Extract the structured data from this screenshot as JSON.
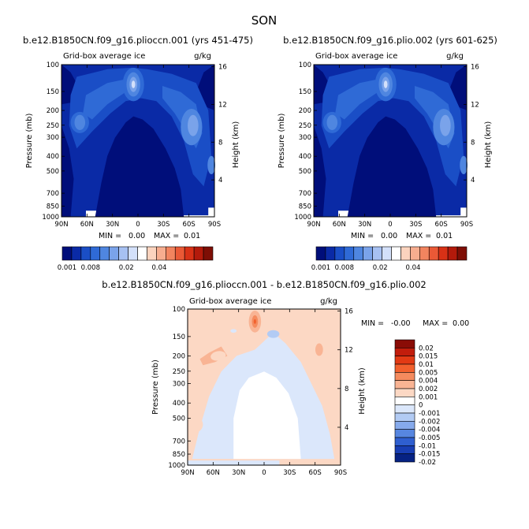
{
  "page_title": "SON",
  "chart_data": [
    {
      "type": "heatmap",
      "title": "b.e12.B1850CN.f09_g16.plioccn.001 (yrs 451-475)",
      "field_name": "Grid-box average ice",
      "units": "g/kg",
      "xlabel": "",
      "ylabel": "Pressure (mb)",
      "ylabel_right": "Height (km)",
      "x_ticks": [
        "90N",
        "60N",
        "30N",
        "0",
        "30S",
        "60S",
        "90S"
      ],
      "y_ticks": [
        "100",
        "150",
        "200",
        "250",
        "300",
        "400",
        "500",
        "700",
        "850",
        "1000"
      ],
      "y_right_ticks": [
        "16",
        "12",
        "8",
        "4"
      ],
      "min_label": "MIN =",
      "min_value": "0.00",
      "max_label": "MAX =",
      "max_value": "0.01",
      "colorbar_labels": [
        "0.001",
        "0.008",
        "0.02",
        "0.04"
      ]
    },
    {
      "type": "heatmap",
      "title": "b.e12.B1850CN.f09_g16.plio.002 (yrs 601-625)",
      "field_name": "Grid-box average ice",
      "units": "g/kg",
      "xlabel": "",
      "ylabel": "Pressure (mb)",
      "ylabel_right": "Height (km)",
      "x_ticks": [
        "90N",
        "60N",
        "30N",
        "0",
        "30S",
        "60S",
        "90S"
      ],
      "y_ticks": [
        "100",
        "150",
        "200",
        "250",
        "300",
        "400",
        "500",
        "700",
        "850",
        "1000"
      ],
      "y_right_ticks": [
        "16",
        "12",
        "8",
        "4"
      ],
      "min_label": "MIN =",
      "min_value": "0.00",
      "max_label": "MAX =",
      "max_value": "0.01",
      "colorbar_labels": [
        "0.001",
        "0.008",
        "0.02",
        "0.04"
      ]
    },
    {
      "type": "heatmap",
      "title": "b.e12.B1850CN.f09_g16.plioccn.001 - b.e12.B1850CN.f09_g16.plio.002",
      "field_name": "Grid-box average ice",
      "units": "g/kg",
      "xlabel": "",
      "ylabel": "Pressure (mb)",
      "ylabel_right": "Height (km)",
      "x_ticks": [
        "90N",
        "60N",
        "30N",
        "0",
        "30S",
        "60S",
        "90S"
      ],
      "y_ticks": [
        "100",
        "150",
        "200",
        "250",
        "300",
        "400",
        "500",
        "700",
        "850",
        "1000"
      ],
      "y_right_ticks": [
        "16",
        "12",
        "8",
        "4"
      ],
      "min_label": "MIN =",
      "min_value": "-0.00",
      "max_label": "MAX =",
      "max_value": "0.00",
      "colorbar_labels": [
        "0.02",
        "0.015",
        "0.01",
        "0.005",
        "0.004",
        "0.002",
        "0.001",
        "0",
        "-0.001",
        "-0.002",
        "-0.004",
        "-0.005",
        "-0.01",
        "-0.015",
        "-0.02"
      ]
    }
  ],
  "palettes": {
    "ice": [
      "#000e7a",
      "#0a2aa6",
      "#1a4ec6",
      "#2f6ad6",
      "#4f86e0",
      "#7aa3ea",
      "#a7c1f2",
      "#d3e0fa",
      "#ffffff",
      "#fbd3be",
      "#f7ad8f",
      "#f2845f",
      "#ea5936",
      "#d83116",
      "#b31a0b",
      "#7e0e05"
    ],
    "diff": [
      "#8a0c06",
      "#c21d0c",
      "#e23a14",
      "#f2602d",
      "#f58b5e",
      "#f9b494",
      "#fcd8c4",
      "#ffffff",
      "#dbe7fb",
      "#b2cbf4",
      "#86aaec",
      "#5786e0",
      "#2f5fd0",
      "#183eb3",
      "#062283"
    ]
  }
}
